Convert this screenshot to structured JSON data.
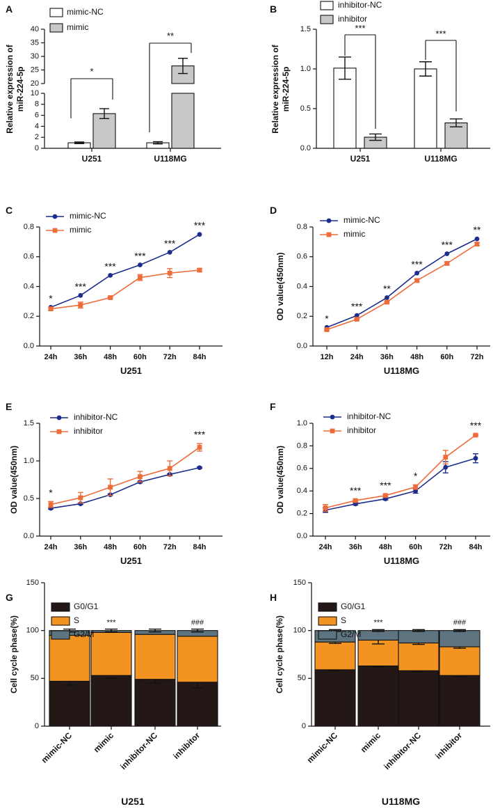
{
  "colors": {
    "ink": "#111111",
    "blue": "#1c2d8c",
    "orange": "#ee6b3a",
    "bar_light": "#c8c8c8",
    "white": "#ffffff",
    "g0g1": "#231815",
    "s": "#f39321",
    "g2m": "#5e7480"
  },
  "chart_data": [
    {
      "panel": "A",
      "type": "bar",
      "title": "",
      "xlabel": "",
      "ylabel": "Relative expression of miR-224-5p",
      "categories": [
        "U251",
        "U118MG"
      ],
      "series": [
        {
          "name": "mimic-NC",
          "values": [
            1.0,
            1.0
          ],
          "errors": [
            0.15,
            0.2
          ]
        },
        {
          "name": "mimic",
          "values": [
            6.3,
            26.5
          ],
          "errors": [
            0.9,
            2.8
          ]
        }
      ],
      "axis_break": {
        "lower": [
          0,
          10
        ],
        "upper": [
          20,
          40
        ]
      },
      "lower_ticks": [
        "0",
        "2",
        "4",
        "6",
        "8",
        "10"
      ],
      "upper_ticks": [
        "20",
        "25",
        "30",
        "35",
        "40"
      ],
      "significance": [
        "*",
        "**"
      ],
      "legend_position": "top-left"
    },
    {
      "panel": "B",
      "type": "bar",
      "title": "",
      "xlabel": "",
      "ylabel": "Relative expression of miR-224-5p",
      "categories": [
        "U251",
        "U118MG"
      ],
      "series": [
        {
          "name": "inhibitor-NC",
          "values": [
            1.01,
            1.0
          ],
          "errors": [
            0.14,
            0.09
          ]
        },
        {
          "name": "inhibitor",
          "values": [
            0.14,
            0.32
          ],
          "errors": [
            0.04,
            0.05
          ]
        }
      ],
      "ylim": [
        0,
        1.5
      ],
      "yticks": [
        "0.0",
        "0.5",
        "1.0",
        "1.5"
      ],
      "significance": [
        "***",
        "***"
      ],
      "legend_position": "top"
    },
    {
      "panel": "C",
      "type": "line",
      "xlabel": "U251",
      "ylabel": "",
      "categories": [
        "24h",
        "36h",
        "48h",
        "60h",
        "72h",
        "84h"
      ],
      "series": [
        {
          "name": "mimic-NC",
          "values": [
            0.26,
            0.34,
            0.475,
            0.545,
            0.63,
            0.75
          ],
          "errors": [
            0,
            0,
            0,
            0,
            0,
            0
          ]
        },
        {
          "name": "mimic",
          "values": [
            0.25,
            0.275,
            0.325,
            0.46,
            0.49,
            0.51
          ],
          "errors": [
            0.01,
            0.02,
            0.005,
            0.02,
            0.03,
            0.01
          ]
        }
      ],
      "ylim": [
        0,
        0.8
      ],
      "yticks": [
        "0.0",
        "0.2",
        "0.4",
        "0.6",
        "0.8"
      ],
      "significance": [
        "*",
        "***",
        "***",
        "***",
        "***",
        "***"
      ],
      "legend_position": "top-left"
    },
    {
      "panel": "D",
      "type": "line",
      "xlabel": "U118MG",
      "ylabel": "OD value(450nm)",
      "categories": [
        "12h",
        "24h",
        "36h",
        "48h",
        "60h",
        "72h"
      ],
      "series": [
        {
          "name": "mimic-NC",
          "values": [
            0.125,
            0.205,
            0.325,
            0.49,
            0.62,
            0.72
          ],
          "errors": [
            0,
            0,
            0,
            0,
            0,
            0
          ]
        },
        {
          "name": "mimic",
          "values": [
            0.11,
            0.18,
            0.295,
            0.44,
            0.555,
            0.685
          ],
          "errors": [
            0.005,
            0.005,
            0.005,
            0.01,
            0.01,
            0.01
          ]
        }
      ],
      "ylim": [
        0,
        0.8
      ],
      "yticks": [
        "0.0",
        "0.2",
        "0.4",
        "0.6",
        "0.8"
      ],
      "significance": [
        "*",
        "***",
        "**",
        "***",
        "***",
        "**"
      ],
      "legend_position": "top-left"
    },
    {
      "panel": "E",
      "type": "line",
      "xlabel": "U251",
      "ylabel": "OD value(450nm)",
      "categories": [
        "24h",
        "36h",
        "48h",
        "60h",
        "72h",
        "84h"
      ],
      "series": [
        {
          "name": "inhibitor-NC",
          "values": [
            0.37,
            0.43,
            0.55,
            0.72,
            0.82,
            0.91
          ],
          "errors": [
            0.01,
            0.01,
            0.01,
            0.01,
            0.01,
            0.01
          ]
        },
        {
          "name": "inhibitor",
          "values": [
            0.42,
            0.51,
            0.65,
            0.79,
            0.9,
            1.18
          ],
          "errors": [
            0.04,
            0.07,
            0.11,
            0.07,
            0.1,
            0.05
          ]
        }
      ],
      "ylim": [
        0,
        1.5
      ],
      "yticks": [
        "0.0",
        "0.5",
        "1.0",
        "1.5"
      ],
      "significance": [
        "*",
        "",
        "",
        "",
        "",
        "***"
      ],
      "legend_position": "top-left"
    },
    {
      "panel": "F",
      "type": "line",
      "xlabel": "U118MG",
      "ylabel": "OD value(450nm)",
      "categories": [
        "24h",
        "36h",
        "48h",
        "60h",
        "72h",
        "84h"
      ],
      "series": [
        {
          "name": "inhibitor-NC",
          "values": [
            0.23,
            0.285,
            0.33,
            0.4,
            0.61,
            0.69
          ],
          "errors": [
            0.02,
            0.01,
            0.01,
            0.02,
            0.05,
            0.04
          ]
        },
        {
          "name": "inhibitor",
          "values": [
            0.25,
            0.315,
            0.36,
            0.435,
            0.7,
            0.895
          ],
          "errors": [
            0.03,
            0.01,
            0.01,
            0.02,
            0.06,
            0.005
          ]
        }
      ],
      "ylim": [
        0,
        1.0
      ],
      "yticks": [
        "0.0",
        "0.2",
        "0.4",
        "0.6",
        "0.8",
        "1.0"
      ],
      "significance": [
        "",
        "***",
        "***",
        "*",
        "",
        "***"
      ],
      "legend_position": "top-left"
    },
    {
      "panel": "G",
      "type": "bar",
      "stacked": true,
      "xlabel": "U251",
      "ylabel": "Cell cycle phase(%)",
      "categories": [
        "mimic-NC",
        "mimic",
        "inhibitor-NC",
        "inhibitor"
      ],
      "series": [
        {
          "name": "G0/G1",
          "values": [
            47,
            53,
            49,
            46
          ],
          "errors": [
            4,
            3,
            4,
            6
          ]
        },
        {
          "name": "S",
          "values": [
            48,
            45,
            47,
            48
          ],
          "errors": [
            0,
            0,
            0,
            0
          ]
        },
        {
          "name": "G2/M",
          "values": [
            5,
            2,
            4,
            6
          ],
          "errors": [
            1.5,
            1.5,
            1.5,
            1.5
          ]
        }
      ],
      "ylim": [
        0,
        150
      ],
      "yticks": [
        "0",
        "50",
        "100",
        "150"
      ],
      "significance": [
        "",
        "***",
        "",
        "###"
      ],
      "legend_position": "top-left"
    },
    {
      "panel": "H",
      "type": "bar",
      "stacked": true,
      "xlabel": "U118MG",
      "ylabel": "Cell cycle phase(%)",
      "categories": [
        "mimic-NC",
        "mimic",
        "inhibitor-NC",
        "inhibitor"
      ],
      "series": [
        {
          "name": "G0/G1",
          "values": [
            59,
            63,
            58,
            53
          ],
          "errors": [
            1,
            1,
            1,
            1
          ]
        },
        {
          "name": "S",
          "values": [
            29,
            27,
            29,
            30
          ],
          "errors": [
            1.5,
            4,
            1.5,
            1.5
          ]
        },
        {
          "name": "G2/M",
          "values": [
            12,
            10,
            13,
            17
          ],
          "errors": [
            1,
            1,
            1,
            1
          ]
        }
      ],
      "ylim": [
        0,
        150
      ],
      "yticks": [
        "0",
        "50",
        "100",
        "150"
      ],
      "significance": [
        "",
        "***",
        "",
        "###"
      ],
      "legend_position": "top-left"
    }
  ]
}
